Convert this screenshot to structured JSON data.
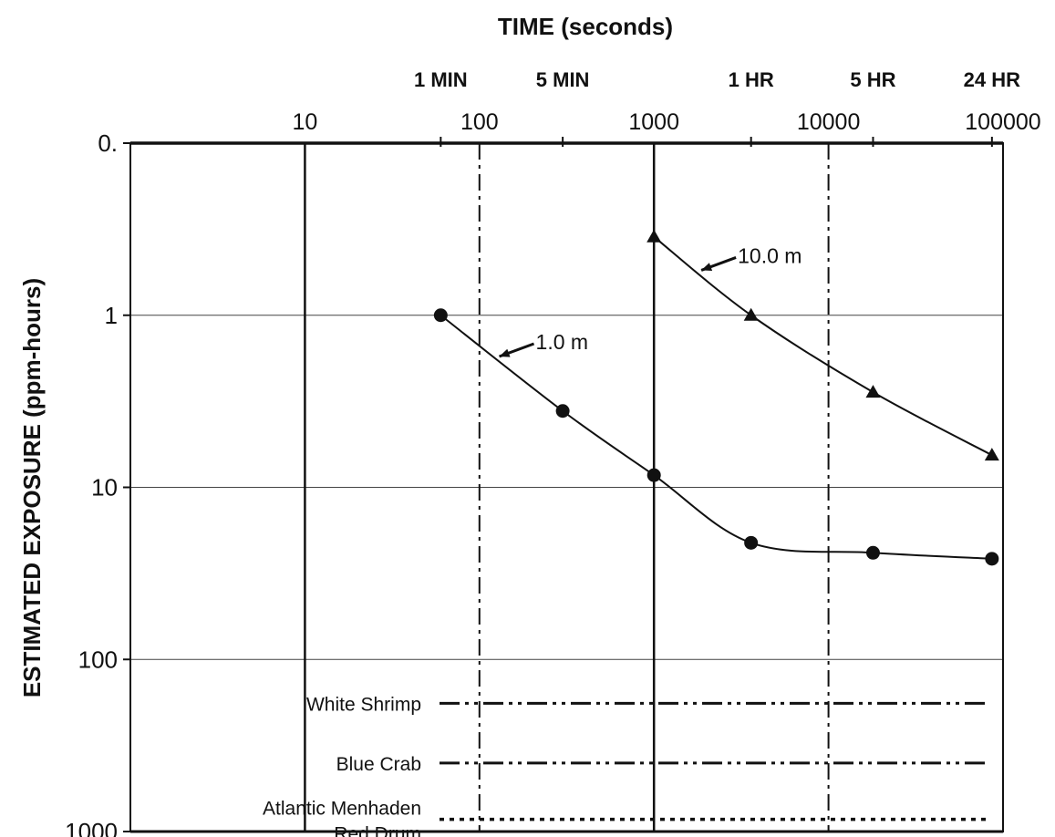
{
  "chart_data": {
    "type": "scatter",
    "title": "TIME (seconds)",
    "xlabel": "TIME (seconds)",
    "ylabel": "ESTIMATED EXPOSURE (ppm-hours)",
    "x_scale": "log",
    "y_scale": "log",
    "y_inverted": true,
    "xlim": [
      1,
      100000
    ],
    "ylim": [
      0.1,
      1000
    ],
    "x_ticks": [
      {
        "value": 10,
        "label": "10"
      },
      {
        "value": 100,
        "label": "100"
      },
      {
        "value": 1000,
        "label": "1000"
      },
      {
        "value": 10000,
        "label": "10000"
      },
      {
        "value": 100000,
        "label": "100000"
      }
    ],
    "time_markers": [
      {
        "value": 60,
        "label": "1 MIN"
      },
      {
        "value": 300,
        "label": "5 MIN"
      },
      {
        "value": 3600,
        "label": "1 HR"
      },
      {
        "value": 18000,
        "label": "5 HR"
      },
      {
        "value": 86400,
        "label": "24 HR"
      }
    ],
    "y_ticks": [
      {
        "value": 0.1,
        "label": "0."
      },
      {
        "value": 1,
        "label": "1"
      },
      {
        "value": 10,
        "label": "10"
      },
      {
        "value": 100,
        "label": "100"
      },
      {
        "value": 1000,
        "label": "1000"
      }
    ],
    "grid": true,
    "series": [
      {
        "name": "1.0 m",
        "marker": "circle",
        "x": [
          60,
          300,
          1000,
          3600,
          18000,
          86400
        ],
        "y": [
          1.0,
          3.6,
          8.5,
          21,
          24,
          26
        ]
      },
      {
        "name": "10.0 m",
        "marker": "triangle",
        "x": [
          1000,
          3600,
          18000,
          86400
        ],
        "y": [
          0.35,
          1.0,
          2.8,
          6.5
        ]
      }
    ],
    "thresholds": [
      {
        "name": "White Shrimp",
        "value": 180,
        "style": "dash-dot-dot"
      },
      {
        "name": "Blue Crab",
        "value": 400,
        "style": "dash-dot-dot"
      },
      {
        "name": "Atlantic Menhaden",
        "value": 850,
        "style": "dotted"
      },
      {
        "name": "Red Drum",
        "value": 850,
        "style": "dotted"
      }
    ],
    "colors": {
      "ink": "#111111",
      "grid": "#444444",
      "background": "#ffffff"
    }
  }
}
